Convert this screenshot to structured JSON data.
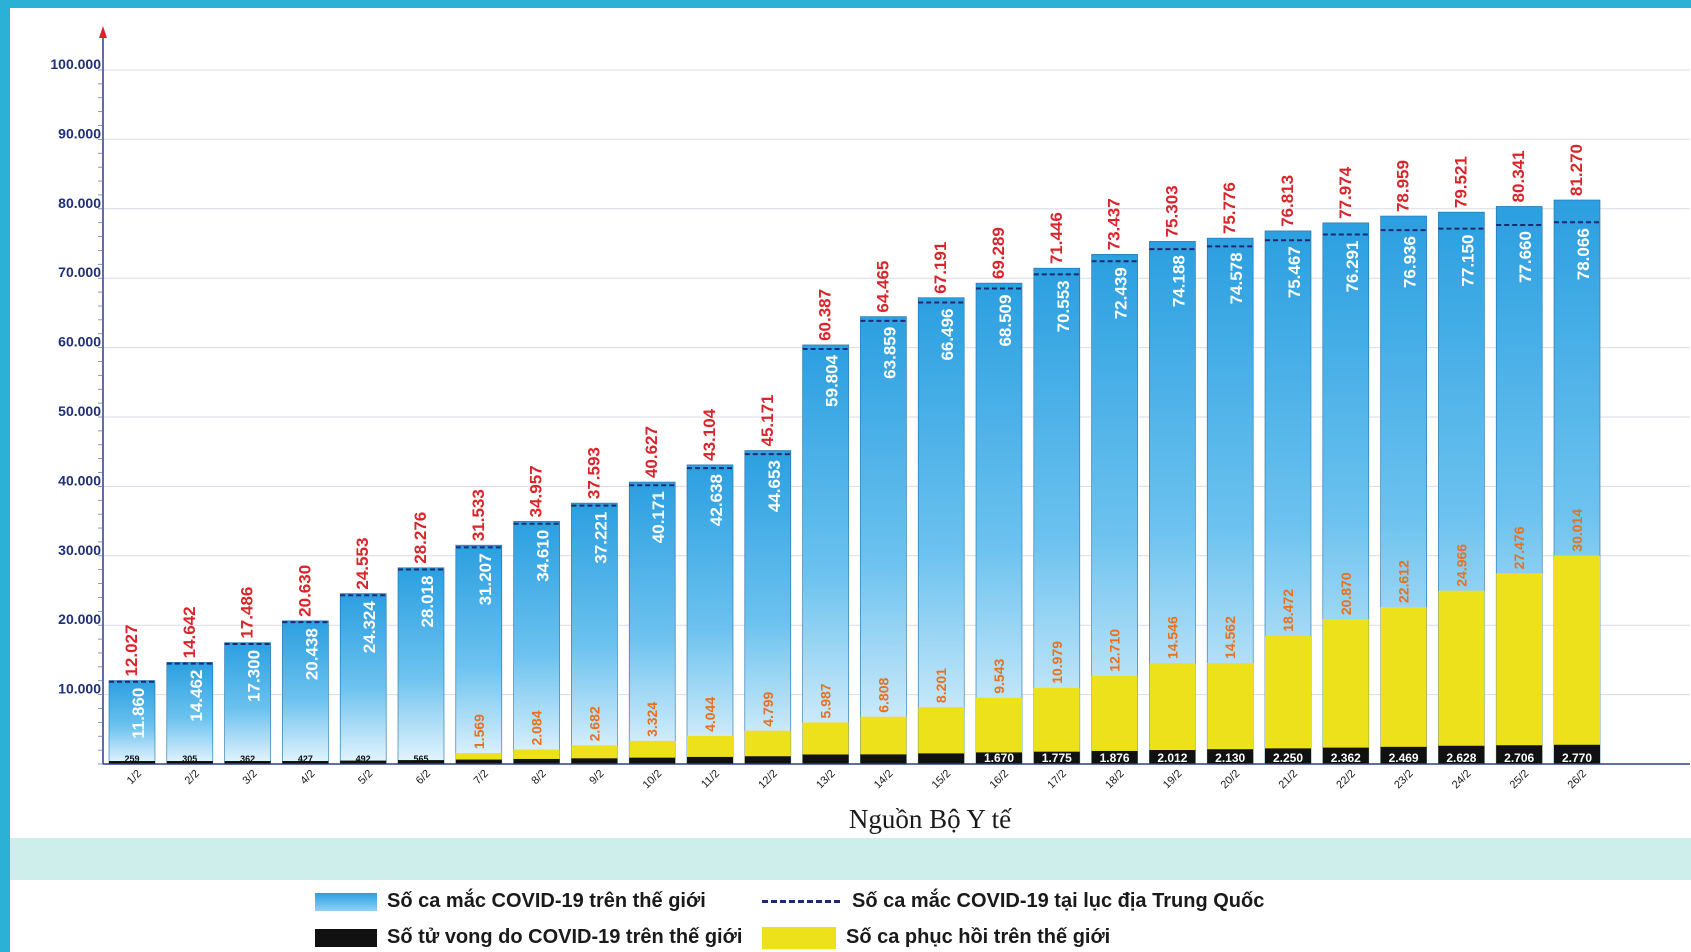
{
  "colors": {
    "frame": "#2bb0d6",
    "world_bar_top": "#2b9fe0",
    "world_bar_bottom": "#e6f5fd",
    "recovered": "#ece11a",
    "deaths": "#111111",
    "china_dash": "#1e2a6e",
    "world_label": "#d9242a",
    "recovered_label": "#e8701e",
    "axis_label": "#1f2f7a",
    "band": "#cdeeea"
  },
  "source": "Nguồn Bộ Y tế",
  "legend": {
    "world": "Số ca mắc COVID-19 trên thế giới",
    "china": "Số ca mắc COVID-19 tại  lục địa Trung Quốc",
    "deaths": "Số tử vong do COVID-19 trên thế giới",
    "recovered": "Số ca phục hồi trên thế giới"
  },
  "chart_data": {
    "type": "bar",
    "categories": [
      "1/2",
      "2/2",
      "3/2",
      "4/2",
      "5/2",
      "6/2",
      "7/2",
      "8/2",
      "9/2",
      "10/2",
      "11/2",
      "12/2",
      "13/2",
      "14/2",
      "15/2",
      "16/2",
      "17/2",
      "18/2",
      "19/2",
      "20/2",
      "21/2",
      "22/2",
      "23/2",
      "24/2",
      "25/2",
      "26/2"
    ],
    "y_ticks": [
      "10.000",
      "20.000",
      "30.000",
      "40.000",
      "50.000",
      "60.000",
      "70.000",
      "80.000",
      "90.000",
      "100.000"
    ],
    "ylim": [
      0,
      100000
    ],
    "series": [
      {
        "name": "Số ca mắc COVID-19 trên thế giới",
        "values": [
          12027,
          14642,
          17486,
          20630,
          24553,
          28276,
          31533,
          34957,
          37593,
          40627,
          43104,
          45171,
          60387,
          64465,
          67191,
          69289,
          71446,
          73437,
          75303,
          75776,
          76813,
          77974,
          78959,
          79521,
          80341,
          81270
        ],
        "labels": [
          "12.027",
          "14.642",
          "17.486",
          "20.630",
          "24.553",
          "28.276",
          "31.533",
          "34.957",
          "37.593",
          "40.627",
          "43.104",
          "45.171",
          "60.387",
          "64.465",
          "67.191",
          "69.289",
          "71.446",
          "73.437",
          "75.303",
          "75.776",
          "76.813",
          "77.974",
          "78.959",
          "79.521",
          "80.341",
          "81.270"
        ]
      },
      {
        "name": "Số ca mắc COVID-19 tại  lục địa Trung Quốc",
        "values": [
          11860,
          14462,
          17300,
          20438,
          24324,
          28018,
          31207,
          34610,
          37221,
          40171,
          42638,
          44653,
          59804,
          63859,
          66496,
          68509,
          70553,
          72439,
          74188,
          74578,
          75467,
          76291,
          76936,
          77150,
          77660,
          78066
        ],
        "labels": [
          "11.860",
          "14.462",
          "17.300",
          "20.438",
          "24.324",
          "28.018",
          "31.207",
          "34.610",
          "37.221",
          "40.171",
          "42.638",
          "44.653",
          "59.804",
          "63.859",
          "66.496",
          "68.509",
          "70.553",
          "72.439",
          "74.188",
          "74.578",
          "75.467",
          "76.291",
          "76.936",
          "77.150",
          "77.660",
          "78.066"
        ]
      },
      {
        "name": "Số ca phục hồi trên thế giới",
        "values": [
          null,
          null,
          null,
          null,
          null,
          null,
          1569,
          2084,
          2682,
          3324,
          4044,
          4799,
          5987,
          6808,
          8201,
          9543,
          10979,
          12710,
          14546,
          14562,
          18472,
          20870,
          22612,
          24966,
          27476,
          30014
        ],
        "labels": [
          "",
          "",
          "",
          "",
          "",
          "",
          "1.569",
          "2.084",
          "2.682",
          "3.324",
          "4.044",
          "4.799",
          "5.987",
          "6.808",
          "8.201",
          "9.543",
          "10.979",
          "12.710",
          "14.546",
          "14.562",
          "18.472",
          "20.870",
          "22.612",
          "24.966",
          "27.476",
          "30.014"
        ]
      },
      {
        "name": "Số tử vong do COVID-19 trên thế giới",
        "values": [
          259,
          305,
          362,
          427,
          492,
          565,
          637,
          723,
          813,
          910,
          1018,
          1115,
          1370,
          1384,
          1527,
          1670,
          1775,
          1876,
          2012,
          2130,
          2250,
          2362,
          2469,
          2628,
          2706,
          2770
        ],
        "labels": [
          "259",
          "305",
          "362",
          "427",
          "492",
          "565",
          "",
          "",
          "",
          "",
          "",
          "",
          "",
          "",
          "",
          "1.670",
          "1.775",
          "1.876",
          "2.012",
          "2.130",
          "2.250",
          "2.362",
          "2.469",
          "2.628",
          "2.706",
          "2.770"
        ]
      }
    ]
  }
}
